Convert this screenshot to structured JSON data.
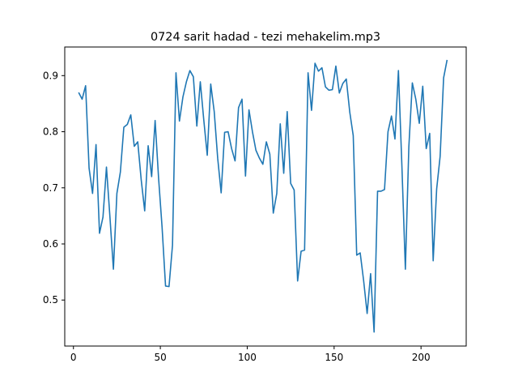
{
  "chart_data": {
    "type": "line",
    "title": "0724 sarit hadad - tezi mehakelim.mp3",
    "xlabel": "",
    "ylabel": "",
    "xlim": [
      -5,
      226
    ],
    "ylim": [
      0.418,
      0.951
    ],
    "xticks": [
      0,
      50,
      100,
      150,
      200
    ],
    "yticks": [
      0.5,
      0.6,
      0.7,
      0.8,
      0.9
    ],
    "grid": false,
    "series": [
      {
        "color": "#1f77b4",
        "x": [
          3,
          5,
          7,
          9,
          11,
          13,
          15,
          17,
          19,
          21,
          23,
          25,
          27,
          29,
          31,
          33,
          35,
          37,
          39,
          41,
          43,
          45,
          47,
          49,
          51,
          53,
          55,
          57,
          59,
          61,
          63,
          65,
          67,
          69,
          71,
          73,
          75,
          77,
          79,
          81,
          83,
          85,
          87,
          89,
          91,
          93,
          95,
          97,
          99,
          101,
          103,
          105,
          107,
          109,
          111,
          113,
          115,
          117,
          119,
          121,
          123,
          125,
          127,
          129,
          131,
          133,
          135,
          137,
          139,
          141,
          143,
          145,
          147,
          149,
          151,
          153,
          155,
          157,
          159,
          161,
          163,
          165,
          167,
          169,
          171,
          173,
          175,
          177,
          179,
          181,
          183,
          185,
          187,
          189,
          191,
          193,
          195,
          197,
          199,
          201,
          203,
          205,
          207,
          209,
          211,
          213,
          215
        ],
        "y": [
          0.87,
          0.858,
          0.882,
          0.735,
          0.69,
          0.777,
          0.619,
          0.648,
          0.737,
          0.648,
          0.555,
          0.69,
          0.728,
          0.808,
          0.813,
          0.83,
          0.774,
          0.782,
          0.714,
          0.659,
          0.775,
          0.72,
          0.82,
          0.717,
          0.63,
          0.525,
          0.524,
          0.598,
          0.905,
          0.819,
          0.862,
          0.889,
          0.909,
          0.898,
          0.81,
          0.889,
          0.821,
          0.758,
          0.885,
          0.836,
          0.753,
          0.691,
          0.799,
          0.8,
          0.77,
          0.748,
          0.843,
          0.858,
          0.721,
          0.839,
          0.8,
          0.767,
          0.753,
          0.742,
          0.782,
          0.76,
          0.655,
          0.69,
          0.814,
          0.726,
          0.836,
          0.708,
          0.696,
          0.534,
          0.587,
          0.589,
          0.905,
          0.838,
          0.922,
          0.908,
          0.914,
          0.88,
          0.874,
          0.875,
          0.917,
          0.869,
          0.886,
          0.894,
          0.835,
          0.793,
          0.58,
          0.584,
          0.534,
          0.476,
          0.547,
          0.443,
          0.694,
          0.694,
          0.697,
          0.8,
          0.828,
          0.787,
          0.909,
          0.739,
          0.555,
          0.773,
          0.887,
          0.858,
          0.815,
          0.881,
          0.77,
          0.797,
          0.57,
          0.698,
          0.756,
          0.896,
          0.928
        ]
      }
    ]
  }
}
